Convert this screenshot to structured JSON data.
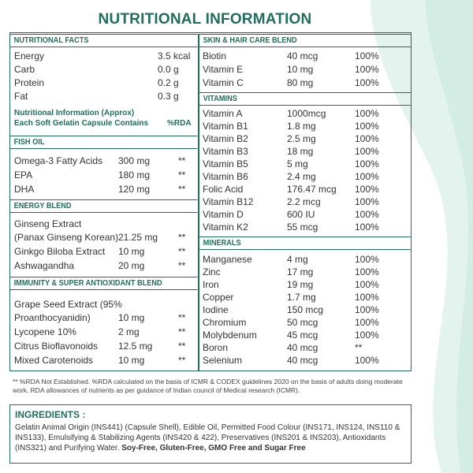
{
  "title": "NUTRITIONAL INFORMATION",
  "nutritional_facts": {
    "heading": "NUTRITIONAL FACTS",
    "rows": [
      {
        "name": "Energy",
        "amount": "3.5 kcal"
      },
      {
        "name": "Carb",
        "amount": "0.0 g"
      },
      {
        "name": "Protein",
        "amount": "0.2 g"
      },
      {
        "name": "Fat",
        "amount": "0.3 g"
      }
    ]
  },
  "capsule_note": {
    "line1": "Nutritional Information (Approx)",
    "line2": "Each Soft Gelatin Capsule Contains",
    "rda_label": "%RDA"
  },
  "fish_oil": {
    "heading": "FISH OIL",
    "rows": [
      {
        "name": "Omega-3 Fatty Acids",
        "amount": "300 mg",
        "rda": "**"
      },
      {
        "name": "EPA",
        "amount": "180 mg",
        "rda": "**"
      },
      {
        "name": "DHA",
        "amount": "120 mg",
        "rda": "**"
      }
    ]
  },
  "energy_blend": {
    "heading": "ENERGY BLEND",
    "line1": "Ginseng Extract",
    "rows": [
      {
        "name": "(Panax Ginseng Korean)",
        "amount": "21.25 mg",
        "rda": "**"
      },
      {
        "name": "Ginkgo Biloba Extract",
        "amount": "10 mg",
        "rda": "**"
      },
      {
        "name": "Ashwagandha",
        "amount": "20 mg",
        "rda": "**"
      }
    ]
  },
  "immunity_blend": {
    "heading": "IMMUNITY & SUPER ANTIOXIDANT BLEND",
    "line1": "Grape Seed Extract (95%",
    "rows": [
      {
        "name": "Proanthocyanidin)",
        "amount": "10 mg",
        "rda": "**"
      },
      {
        "name": "Lycopene 10%",
        "amount": "2 mg",
        "rda": "**"
      },
      {
        "name": "Citrus Bioflavonoids",
        "amount": "12.5 mg",
        "rda": "**"
      },
      {
        "name": "Mixed Carotenoids",
        "amount": "10 mg",
        "rda": "**"
      }
    ]
  },
  "skin_hair_blend": {
    "heading": "SKIN & HAIR CARE BLEND",
    "rows": [
      {
        "name": "Biotin",
        "amount": "40 mcg",
        "rda": "100%"
      },
      {
        "name": "Vitamin E",
        "amount": "10 mg",
        "rda": "100%"
      },
      {
        "name": "Vitamin C",
        "amount": "80 mg",
        "rda": "100%"
      }
    ]
  },
  "vitamins": {
    "heading": "VITAMINS",
    "rows": [
      {
        "name": "Vitamin A",
        "amount": "1000mcg",
        "rda": "100%"
      },
      {
        "name": "Vitamin B1",
        "amount": "1.8 mg",
        "rda": "100%"
      },
      {
        "name": "Vitamin B2",
        "amount": "2.5 mg",
        "rda": "100%"
      },
      {
        "name": "Vitamin B3",
        "amount": "18 mg",
        "rda": "100%"
      },
      {
        "name": "Vitamin B5",
        "amount": "5 mg",
        "rda": "100%"
      },
      {
        "name": "Vitamin B6",
        "amount": "2.4 mg",
        "rda": "100%"
      },
      {
        "name": "Folic Acid",
        "amount": "176.47 mcg",
        "rda": "100%"
      },
      {
        "name": "Vitamin B12",
        "amount": "2.2 mcg",
        "rda": "100%"
      },
      {
        "name": "Vitamin D",
        "amount": "600 IU",
        "rda": "100%"
      },
      {
        "name": "Vitamin K2",
        "amount": "55 mcg",
        "rda": "100%"
      }
    ]
  },
  "minerals": {
    "heading": "MINERALS",
    "rows": [
      {
        "name": "Manganese",
        "amount": "4 mg",
        "rda": "100%"
      },
      {
        "name": "Zinc",
        "amount": "17 mg",
        "rda": "100%"
      },
      {
        "name": "Iron",
        "amount": "19 mg",
        "rda": "100%"
      },
      {
        "name": "Copper",
        "amount": "1.7 mg",
        "rda": "100%"
      },
      {
        "name": "Iodine",
        "amount": "150 mcg",
        "rda": "100%"
      },
      {
        "name": "Chromium",
        "amount": "50 mcg",
        "rda": "100%"
      },
      {
        "name": "Molybdenum",
        "amount": "45 mcg",
        "rda": "100%"
      },
      {
        "name": "Boron",
        "amount": "40 mcg",
        "rda": "**"
      },
      {
        "name": "Selenium",
        "amount": "40 mcg",
        "rda": "100%"
      }
    ]
  },
  "footnote": "** %RDA Not Established. %RDA calculated on the basis of ICMR & CODEX guidelines 2020 on the basis of adults doing moderate work. RDA allowances of nutrients as per guidance of Indian council of Medical research (ICMR).",
  "ingredients": {
    "heading": "INGREDIENTS :",
    "text": "Gelatin Animal Origin (INS441) (Capsule Shell), Edible Oil, Permitted Food Colour (INS171, INS124, INS110 & INS133), Emulsifying & Stabilizing Agents (INS420 & 422), Preservatives (INS201 & INS203), Antioxidants (INS321) and Purifying Water.",
    "bold_text": "Soy-Free, Gluten-Free, GMO Free and Sugar Free"
  },
  "colors": {
    "accent": "#1f6f5c",
    "background_swoosh": "#e3f3ee"
  }
}
